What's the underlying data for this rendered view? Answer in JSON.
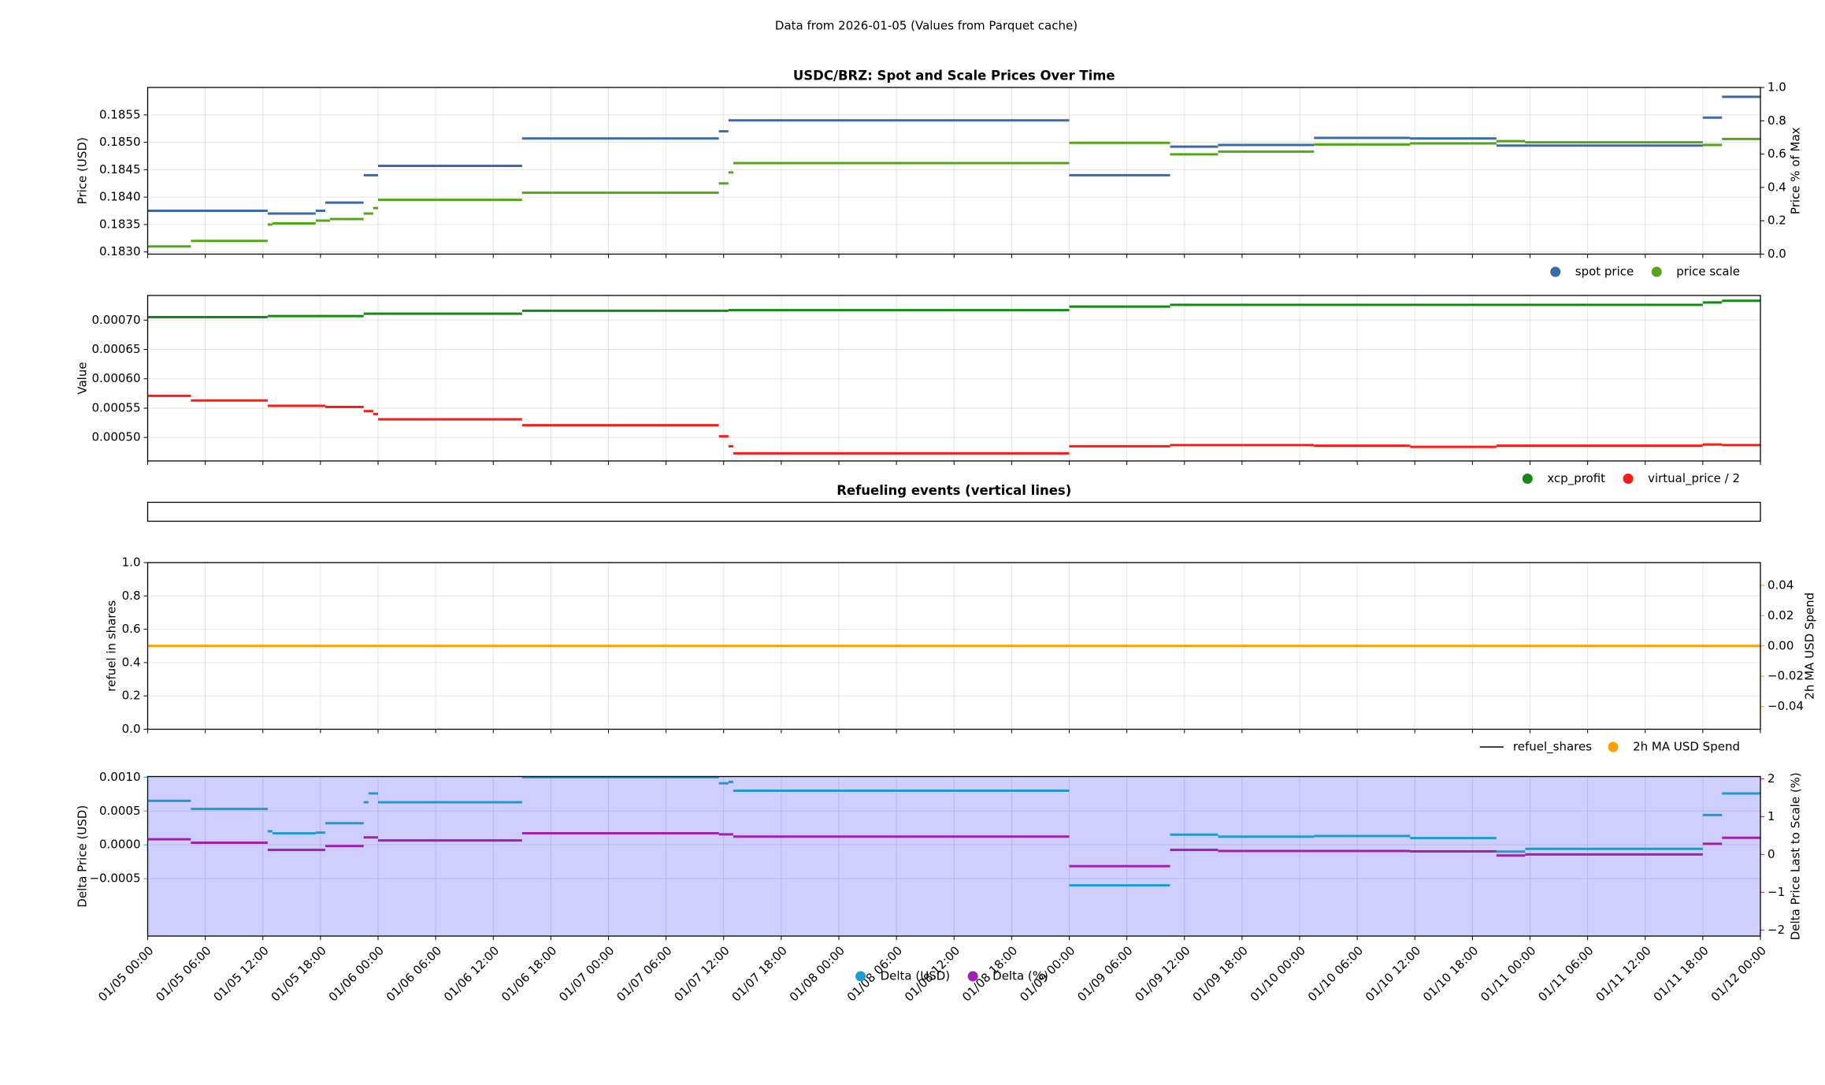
{
  "suptitle": "Data from 2026-01-05 (Values from Parquet cache)",
  "chart_data": [
    {
      "type": "line",
      "drawstyle": "steps-post",
      "title": "USDC/BRZ: Spot and Scale Prices Over Time",
      "ylabel": "Price (USD)",
      "y2label": "Price % of Max",
      "ylim": [
        0.18296,
        0.186
      ],
      "yticks": [
        {
          "value": 0.183,
          "label": "0.1830"
        },
        0.1835,
        {
          "value": 0.184,
          "label": "0.1840"
        },
        0.1845,
        {
          "value": 0.185,
          "label": "0.1850"
        },
        0.1855
      ],
      "y2lim": [
        0,
        1
      ],
      "y2ticks": [
        {
          "value": 0,
          "label": "0.0"
        },
        0.2,
        0.4,
        0.6,
        0.8,
        {
          "value": 1,
          "label": "1.0"
        }
      ],
      "grid": true,
      "legend": "below right",
      "series": [
        {
          "name": "spot price",
          "color": "#3b6aa9",
          "x": [
            "01/05 00:00",
            "01/05 12:30",
            "01/05 17:30",
            "01/05 18:30",
            "01/05 22:30",
            "01/06 00:00",
            "01/06 15:00",
            "01/07 11:30",
            "01/07 12:30",
            "01/09 00:00",
            "01/09 10:30",
            "01/09 15:30",
            "01/10 01:30",
            "01/10 11:30",
            "01/10 20:30",
            "01/11 18:00",
            "01/11 20:00"
          ],
          "values": [
            0.18375,
            0.1837,
            0.18375,
            0.1839,
            0.1844,
            0.18457,
            0.18507,
            0.1852,
            0.1854,
            0.1844,
            0.18492,
            0.18495,
            0.18508,
            0.18507,
            0.18494,
            0.18545,
            0.18583
          ]
        },
        {
          "name": "price scale",
          "color": "#55a51c",
          "x": [
            "01/05 00:00",
            "01/05 04:30",
            "01/05 12:30",
            "01/05 13:00",
            "01/05 17:30",
            "01/05 19:00",
            "01/05 22:30",
            "01/05 23:30",
            "01/06 00:00",
            "01/06 15:00",
            "01/07 11:30",
            "01/07 12:30",
            "01/07 13:00",
            "01/09 00:00",
            "01/09 10:30",
            "01/09 15:30",
            "01/10 01:30",
            "01/10 11:30",
            "01/10 20:30",
            "01/10 23:30",
            "01/11 18:00",
            "01/11 20:00"
          ],
          "values": [
            0.1831,
            0.1832,
            0.1835,
            0.18352,
            0.18357,
            0.1836,
            0.1837,
            0.1838,
            0.18395,
            0.18408,
            0.18425,
            0.18445,
            0.18462,
            0.18499,
            0.18478,
            0.18483,
            0.18496,
            0.18498,
            0.18502,
            0.185,
            0.18495,
            0.18506
          ]
        }
      ]
    },
    {
      "type": "line",
      "drawstyle": "steps-post",
      "ylabel": "Value",
      "ylim": [
        0.00046,
        0.000742
      ],
      "yticks": [
        {
          "value": 0.0005,
          "label": "0.00050"
        },
        {
          "value": 0.00055,
          "label": "0.00055"
        },
        {
          "value": 0.0006,
          "label": "0.00060"
        },
        {
          "value": 0.00065,
          "label": "0.00065"
        },
        {
          "value": 0.0007,
          "label": "0.00070"
        }
      ],
      "grid": true,
      "legend": "below right",
      "series": [
        {
          "name": "xcp_profit",
          "color": "#138a13",
          "x": [
            "01/05 00:00",
            "01/05 12:30",
            "01/05 22:30",
            "01/06 15:00",
            "01/07 12:30",
            "01/09 00:00",
            "01/09 10:30",
            "01/11 18:00",
            "01/11 20:00"
          ],
          "values": [
            0.000705,
            0.000707,
            0.000711,
            0.000716,
            0.000717,
            0.000723,
            0.000726,
            0.00073,
            0.000733
          ]
        },
        {
          "name": "virtual_price / 2",
          "color": "#ff1a1a",
          "x": [
            "01/05 00:00",
            "01/05 04:30",
            "01/05 12:30",
            "01/05 18:30",
            "01/05 22:30",
            "01/05 23:30",
            "01/06 00:00",
            "01/06 15:00",
            "01/07 11:30",
            "01/07 12:30",
            "01/07 13:00",
            "01/09 00:00",
            "01/09 10:30",
            "01/10 01:30",
            "01/10 11:30",
            "01/10 20:30",
            "01/11 18:00",
            "01/11 20:00"
          ],
          "values": [
            0.000571,
            0.000563,
            0.000554,
            0.000552,
            0.000545,
            0.00054,
            0.000531,
            0.000521,
            0.000502,
            0.000485,
            0.000473,
            0.000485,
            0.000487,
            0.000486,
            0.000484,
            0.000486,
            0.000488,
            0.000487
          ]
        }
      ]
    },
    {
      "type": "line",
      "title": "Refueling events (vertical lines)",
      "grid": false,
      "series": []
    },
    {
      "type": "line",
      "drawstyle": "steps-post",
      "ylabel": "refuel in shares",
      "y2label": "2h MA USD Spend",
      "y2color": "#ff9f00",
      "ylim": [
        0,
        1
      ],
      "yticks": [
        {
          "value": 0,
          "label": "0.0"
        },
        0.2,
        0.4,
        0.6,
        0.8,
        {
          "value": 1,
          "label": "1.0"
        }
      ],
      "y2lim": [
        -0.055,
        0.055
      ],
      "y2ticks": [
        0.04,
        0.02,
        {
          "value": 0,
          "label": "0.00"
        },
        {
          "value": -0.02,
          "label": "−0.02"
        },
        {
          "value": -0.04,
          "label": "−0.04"
        }
      ],
      "grid": true,
      "legend": "below right",
      "series": [
        {
          "name": "refuel_shares",
          "color": "#000000",
          "marker": "line",
          "x": [],
          "values": []
        },
        {
          "name": "2h MA USD Spend",
          "color": "#ff9f00",
          "axis": "y2",
          "x": [
            "01/05 00:00"
          ],
          "values": [
            0
          ]
        }
      ]
    },
    {
      "type": "line",
      "drawstyle": "steps-post",
      "ylabel": "Delta Price (USD)",
      "ycolor": "#00b5c8",
      "y2label": "Delta Price Last to Scale (%)",
      "y2color": "#b000b8",
      "xlim": [
        "01/05 00:00",
        "01/12 00:00"
      ],
      "xticks": [
        "01/05 00:00",
        "01/05 06:00",
        "01/05 12:00",
        "01/05 18:00",
        "01/06 00:00",
        "01/06 06:00",
        "01/06 12:00",
        "01/06 18:00",
        "01/07 00:00",
        "01/07 06:00",
        "01/07 12:00",
        "01/07 18:00",
        "01/08 00:00",
        "01/08 06:00",
        "01/08 12:00",
        "01/08 18:00",
        "01/09 00:00",
        "01/09 06:00",
        "01/09 12:00",
        "01/09 18:00",
        "01/10 00:00",
        "01/10 06:00",
        "01/10 12:00",
        "01/10 18:00",
        "01/11 00:00",
        "01/11 06:00",
        "01/11 12:00",
        "01/11 18:00",
        "01/12 00:00"
      ],
      "ylim": [
        -0.00135,
        0.00101
      ],
      "yticks": [
        {
          "value": 0.001,
          "label": "0.0010"
        },
        0.0005,
        {
          "value": 0,
          "label": "0.0000"
        },
        {
          "value": -0.0005,
          "label": "−0.0005"
        }
      ],
      "y2lim": [
        -2.16,
        2.06
      ],
      "y2ticks": [
        2,
        1,
        0,
        {
          "value": -1,
          "label": "−1"
        },
        {
          "value": -2,
          "label": "−2"
        }
      ],
      "span": {
        "from": -0.00135,
        "to": 0.001,
        "color": "#ccccff"
      },
      "grid": true,
      "legend": "below center",
      "series": [
        {
          "name": "Delta (USD)",
          "color": "#1f9bcf",
          "x": [
            "01/05 00:00",
            "01/05 04:30",
            "01/05 12:30",
            "01/05 13:00",
            "01/05 17:30",
            "01/05 18:30",
            "01/05 22:30",
            "01/05 23:00",
            "01/06 00:00",
            "01/06 15:00",
            "01/07 11:30",
            "01/07 12:30",
            "01/07 13:00",
            "01/09 00:00",
            "01/09 10:30",
            "01/09 15:30",
            "01/10 01:30",
            "01/10 11:30",
            "01/10 20:30",
            "01/10 23:30",
            "01/11 18:00",
            "01/11 20:00"
          ],
          "values": [
            0.00065,
            0.00053,
            0.0002,
            0.00017,
            0.00018,
            0.00032,
            0.00063,
            0.00076,
            0.00063,
            0.001,
            0.00091,
            0.00093,
            0.0008,
            -0.0006,
            0.00015,
            0.00012,
            0.00013,
            0.0001,
            -0.0001,
            -6e-05,
            0.00044,
            0.00076
          ]
        },
        {
          "name": "Delta (%)",
          "color": "#a020b0",
          "axis": "y2",
          "x": [
            "01/05 00:00",
            "01/05 04:30",
            "01/05 12:30",
            "01/05 18:30",
            "01/05 22:30",
            "01/06 00:00",
            "01/06 15:00",
            "01/07 11:30",
            "01/07 13:00",
            "01/09 00:00",
            "01/09 10:30",
            "01/09 15:30",
            "01/10 11:30",
            "01/10 20:30",
            "01/10 23:30",
            "01/11 18:00",
            "01/11 20:00"
          ],
          "values": [
            0.4,
            0.31,
            0.12,
            0.22,
            0.45,
            0.37,
            0.56,
            0.53,
            0.47,
            -0.31,
            0.12,
            0.09,
            0.08,
            -0.03,
            0,
            0.28,
            0.44
          ]
        }
      ]
    }
  ]
}
